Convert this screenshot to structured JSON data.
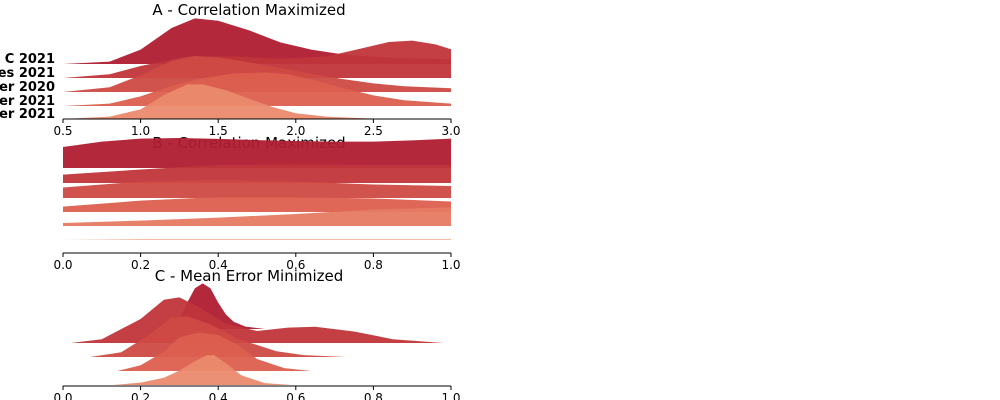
{
  "colors": {
    "c1": "#b01c32",
    "c2": "#c0353a",
    "c3": "#cf4a44",
    "c4": "#dc5f4e",
    "c5": "#e67a62",
    "c6": "#ea8a6d"
  },
  "chart_data": [
    {
      "type": "ridgeline",
      "title": "A - Correlation Maximized",
      "xlim": [
        0.5,
        3.0
      ],
      "xticks": [
        "0.5",
        "1.0",
        "1.5",
        "2.0",
        "2.5",
        "3.0"
      ],
      "x_tick_values": [
        0.5,
        1.0,
        1.5,
        2.0,
        2.5,
        3.0
      ],
      "grid": false,
      "row_labels": [
        "C 2021",
        "es 2021",
        "er 2020",
        "er 2021",
        "er 2021"
      ],
      "series": [
        {
          "color": "c1",
          "x": [
            0.5,
            0.8,
            1.0,
            1.2,
            1.35,
            1.5,
            1.7,
            1.9,
            2.1,
            2.3,
            2.5,
            2.7,
            3.0
          ],
          "y": [
            0.0,
            0.05,
            0.3,
            0.75,
            0.95,
            0.9,
            0.7,
            0.45,
            0.3,
            0.2,
            0.15,
            0.12,
            0.1
          ]
        },
        {
          "color": "c2",
          "x": [
            0.5,
            0.8,
            1.0,
            1.3,
            1.6,
            1.9,
            2.2,
            2.4,
            2.6,
            2.75,
            2.9,
            3.0
          ],
          "y": [
            0.0,
            0.08,
            0.25,
            0.45,
            0.45,
            0.4,
            0.45,
            0.6,
            0.75,
            0.78,
            0.7,
            0.6
          ]
        },
        {
          "color": "c3",
          "x": [
            0.5,
            0.8,
            1.0,
            1.2,
            1.35,
            1.5,
            1.7,
            1.9,
            2.1,
            2.3,
            2.5,
            2.7,
            3.0
          ],
          "y": [
            0.0,
            0.1,
            0.35,
            0.65,
            0.75,
            0.72,
            0.62,
            0.5,
            0.38,
            0.27,
            0.18,
            0.12,
            0.08
          ]
        },
        {
          "color": "c4",
          "x": [
            0.5,
            0.8,
            1.0,
            1.2,
            1.4,
            1.6,
            1.8,
            1.95,
            2.1,
            2.3,
            2.5,
            2.7,
            3.0
          ],
          "y": [
            0.0,
            0.05,
            0.2,
            0.42,
            0.58,
            0.68,
            0.7,
            0.66,
            0.55,
            0.38,
            0.22,
            0.12,
            0.05
          ]
        },
        {
          "color": "c6",
          "x": [
            0.5,
            0.8,
            1.0,
            1.15,
            1.3,
            1.4,
            1.55,
            1.7,
            1.85,
            2.0,
            2.2,
            2.4,
            2.6,
            3.0
          ],
          "y": [
            0.0,
            0.05,
            0.2,
            0.5,
            0.72,
            0.72,
            0.6,
            0.42,
            0.25,
            0.12,
            0.05,
            0.02,
            0.0,
            0.0
          ]
        }
      ]
    },
    {
      "type": "ridgeline",
      "title": "B - Correlation Maximized",
      "xlim": [
        0.0,
        1.0
      ],
      "xticks": [
        "0.0",
        "0.2",
        "0.4",
        "0.6",
        "0.8",
        "1.0"
      ],
      "x_tick_values": [
        0.0,
        0.2,
        0.4,
        0.6,
        0.8,
        1.0
      ],
      "grid": false,
      "series": [
        {
          "color": "c1",
          "x": [
            0.0,
            0.1,
            0.2,
            0.3,
            0.4,
            0.5,
            0.6,
            0.7,
            0.8,
            0.9,
            1.0
          ],
          "y": [
            0.7,
            0.88,
            0.98,
            1.0,
            0.97,
            0.93,
            0.9,
            0.88,
            0.88,
            0.92,
            0.98
          ]
        },
        {
          "color": "c2",
          "x": [
            0.0,
            0.2,
            0.4,
            0.6,
            0.8,
            1.0
          ],
          "y": [
            0.28,
            0.45,
            0.6,
            0.62,
            0.6,
            0.6
          ]
        },
        {
          "color": "c3",
          "x": [
            0.0,
            0.2,
            0.4,
            0.6,
            0.8,
            1.0
          ],
          "y": [
            0.35,
            0.55,
            0.6,
            0.55,
            0.45,
            0.4
          ]
        },
        {
          "color": "c4",
          "x": [
            0.0,
            0.2,
            0.4,
            0.6,
            0.8,
            1.0
          ],
          "y": [
            0.18,
            0.38,
            0.5,
            0.5,
            0.45,
            0.35
          ]
        },
        {
          "color": "c5",
          "x": [
            0.0,
            0.2,
            0.4,
            0.6,
            0.8,
            1.0
          ],
          "y": [
            0.1,
            0.18,
            0.28,
            0.4,
            0.55,
            0.62
          ]
        },
        {
          "color": "c6",
          "x": [
            0.0,
            0.2,
            0.4,
            0.6,
            0.8,
            1.0
          ],
          "y": [
            0.0,
            0.02,
            0.02,
            0.02,
            0.02,
            0.02
          ]
        }
      ]
    },
    {
      "type": "ridgeline",
      "title": "C - Mean Error Minimized",
      "xlim": [
        0.0,
        1.0
      ],
      "xticks": [
        "0.0",
        "0.2",
        "0.4",
        "0.6",
        "0.8",
        "1.0"
      ],
      "x_tick_values": [
        0.0,
        0.2,
        0.4,
        0.6,
        0.8,
        1.0
      ],
      "grid": false,
      "series": [
        {
          "color": "c1",
          "x": [
            0.28,
            0.3,
            0.32,
            0.34,
            0.36,
            0.38,
            0.4,
            0.42,
            0.44,
            0.47,
            0.52
          ],
          "y": [
            0.0,
            0.2,
            0.55,
            0.85,
            0.95,
            0.85,
            0.55,
            0.3,
            0.15,
            0.05,
            0.0
          ]
        },
        {
          "color": "c2",
          "x": [
            0.02,
            0.1,
            0.2,
            0.26,
            0.3,
            0.35,
            0.42,
            0.5,
            0.58,
            0.65,
            0.75,
            0.85,
            0.98
          ],
          "y": [
            0.0,
            0.08,
            0.5,
            0.9,
            0.95,
            0.75,
            0.4,
            0.25,
            0.32,
            0.34,
            0.24,
            0.08,
            0.0
          ]
        },
        {
          "color": "c3",
          "x": [
            0.07,
            0.15,
            0.22,
            0.28,
            0.32,
            0.38,
            0.45,
            0.55,
            0.62,
            0.73
          ],
          "y": [
            0.0,
            0.1,
            0.45,
            0.82,
            0.85,
            0.68,
            0.38,
            0.12,
            0.04,
            0.0
          ]
        },
        {
          "color": "c4",
          "x": [
            0.14,
            0.2,
            0.26,
            0.3,
            0.35,
            0.4,
            0.45,
            0.5,
            0.57,
            0.64
          ],
          "y": [
            0.0,
            0.12,
            0.4,
            0.7,
            0.8,
            0.75,
            0.55,
            0.25,
            0.06,
            0.0
          ]
        },
        {
          "color": "c6",
          "x": [
            0.13,
            0.2,
            0.26,
            0.3,
            0.33,
            0.37,
            0.39,
            0.42,
            0.46,
            0.52,
            0.59
          ],
          "y": [
            0.0,
            0.05,
            0.15,
            0.3,
            0.45,
            0.62,
            0.62,
            0.45,
            0.2,
            0.04,
            0.0
          ]
        }
      ]
    }
  ]
}
